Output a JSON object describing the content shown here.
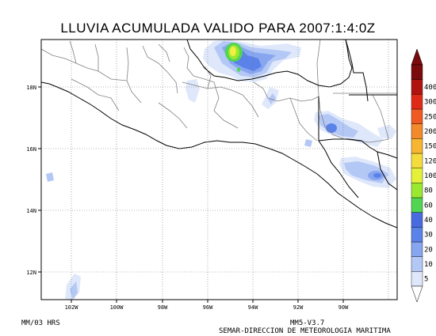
{
  "title": "LLUVIA ACUMULADA VALIDO PARA 2007:1:4:0Z",
  "map": {
    "lat_ticks": [
      "18N",
      "16N",
      "14N",
      "12N"
    ],
    "lon_ticks": [
      "102W",
      "100W",
      "98W",
      "96W",
      "94W",
      "92W",
      "90W"
    ],
    "grid": "dotted",
    "land_color": "#ffffff",
    "coast_color": "#000000",
    "border_color": "#808080"
  },
  "colorbar": {
    "levels": [
      "5",
      "10",
      "20",
      "30",
      "40",
      "60",
      "80",
      "100",
      "120",
      "150",
      "200",
      "250",
      "300",
      "400"
    ],
    "colors": [
      "#dfe8fb",
      "#b4c8f5",
      "#88a6ef",
      "#5b82e8",
      "#4a6be0",
      "#52d552",
      "#9be831",
      "#e4f03a",
      "#f5dc3c",
      "#f6b631",
      "#f28a2b",
      "#ef5a23",
      "#e02a18",
      "#b01410",
      "#7a0a0c"
    ]
  },
  "footer": {
    "units": "MM/03 HRS",
    "model": "MM5-V3.7",
    "organization": "SEMAR-DIRECCION DE METEOROLOGIA MARITIMA"
  }
}
